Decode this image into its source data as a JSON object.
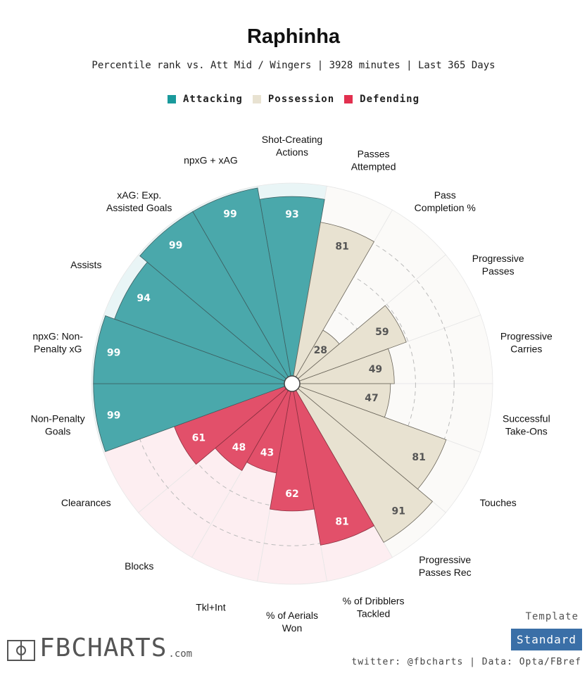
{
  "chart_data": {
    "type": "radar-bar",
    "title": "Raphinha",
    "subtitle": "Percentile rank vs. Att Mid / Wingers | 3928 minutes | Last 365 Days",
    "legend": [
      {
        "name": "Attacking",
        "color": "#3aa0a3"
      },
      {
        "name": "Possession",
        "color": "#e8e2d1"
      },
      {
        "name": "Defending",
        "color": "#e2485f"
      }
    ],
    "rmax": 100,
    "gridlines": [
      20,
      40,
      60,
      80
    ],
    "categories": [
      {
        "label": [
          "Shot-Creating",
          "Actions"
        ],
        "value": 93,
        "group": "Attacking"
      },
      {
        "label": [
          "Passes",
          "Attempted"
        ],
        "value": 81,
        "group": "Possession"
      },
      {
        "label": [
          "Pass",
          "Completion %"
        ],
        "value": 28,
        "group": "Possession"
      },
      {
        "label": [
          "Progressive",
          "Passes"
        ],
        "value": 59,
        "group": "Possession"
      },
      {
        "label": [
          "Progressive",
          "Carries"
        ],
        "value": 49,
        "group": "Possession"
      },
      {
        "label": [
          "Successful",
          "Take-Ons"
        ],
        "value": 47,
        "group": "Possession"
      },
      {
        "label": [
          "Touches"
        ],
        "value": 81,
        "group": "Possession"
      },
      {
        "label": [
          "Progressive",
          "Passes Rec"
        ],
        "value": 91,
        "group": "Possession"
      },
      {
        "label": [
          "% of Dribblers",
          "Tackled"
        ],
        "value": 81,
        "group": "Defending"
      },
      {
        "label": [
          "% of Aerials",
          "Won"
        ],
        "value": 62,
        "group": "Defending"
      },
      {
        "label": [
          "Tkl+Int"
        ],
        "value": 43,
        "group": "Defending"
      },
      {
        "label": [
          "Blocks"
        ],
        "value": 48,
        "group": "Defending"
      },
      {
        "label": [
          "Clearances"
        ],
        "value": 61,
        "group": "Defending"
      },
      {
        "label": [
          "Non-Penalty",
          "Goals"
        ],
        "value": 99,
        "group": "Attacking"
      },
      {
        "label": [
          "npxG: Non-",
          "Penalty xG"
        ],
        "value": 99,
        "group": "Attacking"
      },
      {
        "label": [
          "Assists"
        ],
        "value": 94,
        "group": "Attacking"
      },
      {
        "label": [
          "xAG: Exp.",
          "Assisted Goals"
        ],
        "value": 99,
        "group": "Attacking"
      },
      {
        "label": [
          "npxG + xAG"
        ],
        "value": 99,
        "group": "Attacking"
      }
    ]
  },
  "colors": {
    "attacking_bg": "#e9f5f6",
    "possession_bg": "#fbfaf8",
    "defending_bg": "#fdeef1",
    "possession_text": "#555555",
    "value_text_light": "#ffffff",
    "template_button": "#3a6fa7"
  },
  "footer": {
    "template_caption": "Template",
    "template_button": "Standard",
    "credit": "twitter: @fbcharts | Data: Opta/FBref",
    "brand": "FBCHARTS",
    "brand_suffix": ".com",
    "brand_icon": "pitch-icon"
  }
}
